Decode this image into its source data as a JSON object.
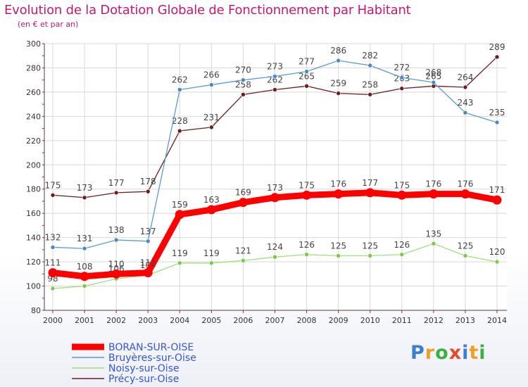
{
  "title": "Evolution de la Dotation Globale de Fonctionnement par Habitant",
  "subtitle": "(en € et par an)",
  "logo": {
    "p": "P",
    "r": "r",
    "o": "o",
    "x": "x",
    "i1": "i",
    "t": "t",
    "i2": "i"
  },
  "chart_data": {
    "type": "line",
    "title": "Evolution de la Dotation Globale de Fonctionnement par Habitant",
    "subtitle": "(en € et par an)",
    "xlabel": "",
    "ylabel": "",
    "ylim": [
      80,
      300
    ],
    "yticks": [
      80,
      100,
      120,
      140,
      160,
      180,
      200,
      220,
      240,
      260,
      280,
      300
    ],
    "categories": [
      "2000",
      "2001",
      "2002",
      "2003",
      "2004",
      "2005",
      "2006",
      "2007",
      "2008",
      "2009",
      "2010",
      "2011",
      "2012",
      "2013",
      "2014"
    ],
    "grid": true,
    "legend_position": "bottom-left",
    "series": [
      {
        "name": "Précy-sur-Oise",
        "color": "#6b1e1e",
        "marker": "#6b1e1e",
        "emphasis": false,
        "values": [
          175,
          173,
          177,
          178,
          228,
          231,
          258,
          262,
          265,
          259,
          258,
          263,
          265,
          264,
          289
        ]
      },
      {
        "name": "Bruyères-sur-Oise",
        "color": "#5b9bd5",
        "marker": "#4f86c6",
        "emphasis": false,
        "values": [
          132,
          131,
          138,
          137,
          262,
          266,
          270,
          273,
          277,
          286,
          282,
          272,
          268,
          243,
          235
        ]
      },
      {
        "name": "Noisy-sur-Oise",
        "color": "#9fe07a",
        "marker": "#7cc94a",
        "emphasis": false,
        "values": [
          98,
          100,
          106,
          109,
          119,
          119,
          121,
          124,
          126,
          125,
          125,
          126,
          135,
          125,
          120
        ]
      },
      {
        "name": "BORAN-SUR-OISE",
        "color": "#ff0000",
        "marker": "#ff0000",
        "emphasis": true,
        "values": [
          111,
          108,
          110,
          111,
          159,
          163,
          169,
          173,
          175,
          176,
          177,
          175,
          176,
          176,
          171
        ]
      }
    ],
    "legend": [
      {
        "name": "BORAN-SUR-OISE",
        "color": "#ff0000",
        "emphasis": true
      },
      {
        "name": "Bruyères-sur-Oise",
        "color": "#5b9bd5",
        "emphasis": false
      },
      {
        "name": "Noisy-sur-Oise",
        "color": "#9fe07a",
        "emphasis": false
      },
      {
        "name": "Précy-sur-Oise",
        "color": "#6b1e1e",
        "emphasis": false
      }
    ],
    "legend_text_color": "#3a55d0",
    "title_color": "#c21a6e"
  }
}
